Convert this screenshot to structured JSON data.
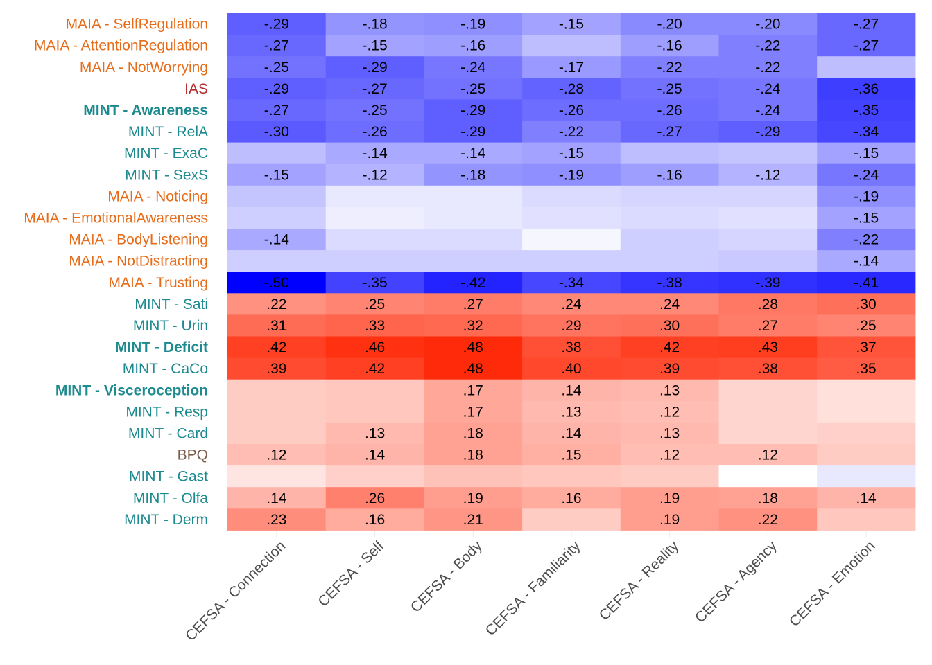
{
  "chart_data": {
    "type": "heatmap",
    "title": "",
    "xlabel": "",
    "ylabel": "",
    "columns": [
      "CEFSA - Connection",
      "CEFSA - Self",
      "CEFSA - Body",
      "CEFSA - Familiarity",
      "CEFSA - Reality",
      "CEFSA - Agency",
      "CEFSA - Emotion"
    ],
    "rows": [
      {
        "label": "MAIA - SelfRegulation",
        "group": "MAIA",
        "bold": false,
        "values": [
          -0.29,
          -0.18,
          -0.19,
          -0.15,
          -0.2,
          -0.2,
          -0.27
        ],
        "shown": [
          true,
          true,
          true,
          true,
          true,
          true,
          true
        ]
      },
      {
        "label": "MAIA - AttentionRegulation",
        "group": "MAIA",
        "bold": false,
        "values": [
          -0.27,
          -0.15,
          -0.16,
          -0.1,
          -0.16,
          -0.22,
          -0.27
        ],
        "shown": [
          true,
          true,
          true,
          false,
          true,
          true,
          true
        ]
      },
      {
        "label": "MAIA - NotWorrying",
        "group": "MAIA",
        "bold": false,
        "values": [
          -0.25,
          -0.29,
          -0.24,
          -0.17,
          -0.22,
          -0.22,
          -0.1
        ],
        "shown": [
          true,
          true,
          true,
          true,
          true,
          true,
          false
        ]
      },
      {
        "label": "IAS",
        "group": "IAS",
        "bold": false,
        "values": [
          -0.29,
          -0.27,
          -0.25,
          -0.28,
          -0.25,
          -0.24,
          -0.36
        ],
        "shown": [
          true,
          true,
          true,
          true,
          true,
          true,
          true
        ]
      },
      {
        "label": "MINT - Awareness",
        "group": "MINT",
        "bold": true,
        "values": [
          -0.27,
          -0.25,
          -0.29,
          -0.26,
          -0.26,
          -0.24,
          -0.35
        ],
        "shown": [
          true,
          true,
          true,
          true,
          true,
          true,
          true
        ]
      },
      {
        "label": "MINT - RelA",
        "group": "MINT",
        "bold": false,
        "values": [
          -0.3,
          -0.26,
          -0.29,
          -0.22,
          -0.27,
          -0.29,
          -0.34
        ],
        "shown": [
          true,
          true,
          true,
          true,
          true,
          true,
          true
        ]
      },
      {
        "label": "MINT - ExaC",
        "group": "MINT",
        "bold": false,
        "values": [
          -0.1,
          -0.14,
          -0.14,
          -0.15,
          -0.1,
          -0.09,
          -0.15
        ],
        "shown": [
          false,
          true,
          true,
          true,
          false,
          false,
          true
        ]
      },
      {
        "label": "MINT - SexS",
        "group": "MINT",
        "bold": false,
        "values": [
          -0.15,
          -0.12,
          -0.18,
          -0.19,
          -0.16,
          -0.12,
          -0.24
        ],
        "shown": [
          true,
          true,
          true,
          true,
          true,
          true,
          true
        ]
      },
      {
        "label": "MAIA - Noticing",
        "group": "MAIA",
        "bold": false,
        "values": [
          -0.09,
          -0.03,
          -0.03,
          -0.05,
          -0.06,
          -0.06,
          -0.19
        ],
        "shown": [
          false,
          false,
          false,
          false,
          false,
          false,
          true
        ]
      },
      {
        "label": "MAIA - EmotionalAwareness",
        "group": "MAIA",
        "bold": false,
        "values": [
          -0.07,
          -0.02,
          -0.03,
          -0.04,
          -0.05,
          -0.04,
          -0.15
        ],
        "shown": [
          false,
          false,
          false,
          false,
          false,
          false,
          true
        ]
      },
      {
        "label": "MAIA - BodyListening",
        "group": "MAIA",
        "bold": false,
        "values": [
          -0.14,
          -0.05,
          -0.05,
          -0.01,
          -0.07,
          -0.06,
          -0.22
        ],
        "shown": [
          true,
          false,
          false,
          false,
          false,
          false,
          true
        ]
      },
      {
        "label": "MAIA - NotDistracting",
        "group": "MAIA",
        "bold": false,
        "values": [
          -0.07,
          -0.07,
          -0.07,
          -0.07,
          -0.07,
          -0.08,
          -0.14
        ],
        "shown": [
          false,
          false,
          false,
          false,
          false,
          false,
          true
        ]
      },
      {
        "label": "MAIA - Trusting",
        "group": "MAIA",
        "bold": false,
        "values": [
          -0.5,
          -0.35,
          -0.42,
          -0.34,
          -0.38,
          -0.39,
          -0.41
        ],
        "shown": [
          true,
          true,
          true,
          true,
          true,
          true,
          true
        ]
      },
      {
        "label": "MINT - Sati",
        "group": "MINT",
        "bold": false,
        "values": [
          0.22,
          0.25,
          0.27,
          0.24,
          0.24,
          0.28,
          0.3
        ],
        "shown": [
          true,
          true,
          true,
          true,
          true,
          true,
          true
        ]
      },
      {
        "label": "MINT - Urin",
        "group": "MINT",
        "bold": false,
        "values": [
          0.31,
          0.33,
          0.32,
          0.29,
          0.3,
          0.27,
          0.25
        ],
        "shown": [
          true,
          true,
          true,
          true,
          true,
          true,
          true
        ]
      },
      {
        "label": "MINT - Deficit",
        "group": "MINT",
        "bold": true,
        "values": [
          0.42,
          0.46,
          0.48,
          0.38,
          0.42,
          0.43,
          0.37
        ],
        "shown": [
          true,
          true,
          true,
          true,
          true,
          true,
          true
        ]
      },
      {
        "label": "MINT - CaCo",
        "group": "MINT",
        "bold": false,
        "values": [
          0.39,
          0.42,
          0.48,
          0.4,
          0.39,
          0.38,
          0.35
        ],
        "shown": [
          true,
          true,
          true,
          true,
          true,
          true,
          true
        ]
      },
      {
        "label": "MINT - Visceroception",
        "group": "MINT",
        "bold": true,
        "values": [
          0.09,
          0.1,
          0.17,
          0.14,
          0.13,
          0.07,
          0.05
        ],
        "shown": [
          false,
          false,
          true,
          true,
          true,
          false,
          false
        ]
      },
      {
        "label": "MINT - Resp",
        "group": "MINT",
        "bold": false,
        "values": [
          0.09,
          0.1,
          0.17,
          0.13,
          0.12,
          0.07,
          0.05
        ],
        "shown": [
          false,
          false,
          true,
          true,
          true,
          false,
          false
        ]
      },
      {
        "label": "MINT - Card",
        "group": "MINT",
        "bold": false,
        "values": [
          0.09,
          0.13,
          0.18,
          0.14,
          0.13,
          0.07,
          0.08
        ],
        "shown": [
          false,
          true,
          true,
          true,
          true,
          false,
          false
        ]
      },
      {
        "label": "BPQ",
        "group": "BPQ",
        "bold": false,
        "values": [
          0.12,
          0.14,
          0.18,
          0.15,
          0.12,
          0.12,
          0.09
        ],
        "shown": [
          true,
          true,
          true,
          true,
          true,
          true,
          false
        ]
      },
      {
        "label": "MINT - Gast",
        "group": "MINT",
        "bold": false,
        "values": [
          0.04,
          0.08,
          0.11,
          0.1,
          0.09,
          0.0,
          -0.03
        ],
        "shown": [
          false,
          false,
          false,
          false,
          false,
          false,
          false
        ]
      },
      {
        "label": "MINT - Olfa",
        "group": "MINT",
        "bold": false,
        "values": [
          0.14,
          0.26,
          0.19,
          0.16,
          0.19,
          0.18,
          0.14
        ],
        "shown": [
          true,
          true,
          true,
          true,
          true,
          true,
          true
        ]
      },
      {
        "label": "MINT - Derm",
        "group": "MINT",
        "bold": false,
        "values": [
          0.23,
          0.16,
          0.21,
          0.09,
          0.19,
          0.22,
          0.1
        ],
        "shown": [
          true,
          true,
          true,
          false,
          true,
          true,
          false
        ]
      }
    ],
    "color_scale": {
      "negative": "#0000ff",
      "zero": "#ffffff",
      "positive": "#ff2200",
      "limit": 0.5
    },
    "group_colors": {
      "MAIA": "#e76c1a",
      "MINT": "#1c8a8f",
      "IAS": "#b52a2a",
      "BPQ": "#7a5a48"
    },
    "grid": true,
    "legend": "none"
  }
}
